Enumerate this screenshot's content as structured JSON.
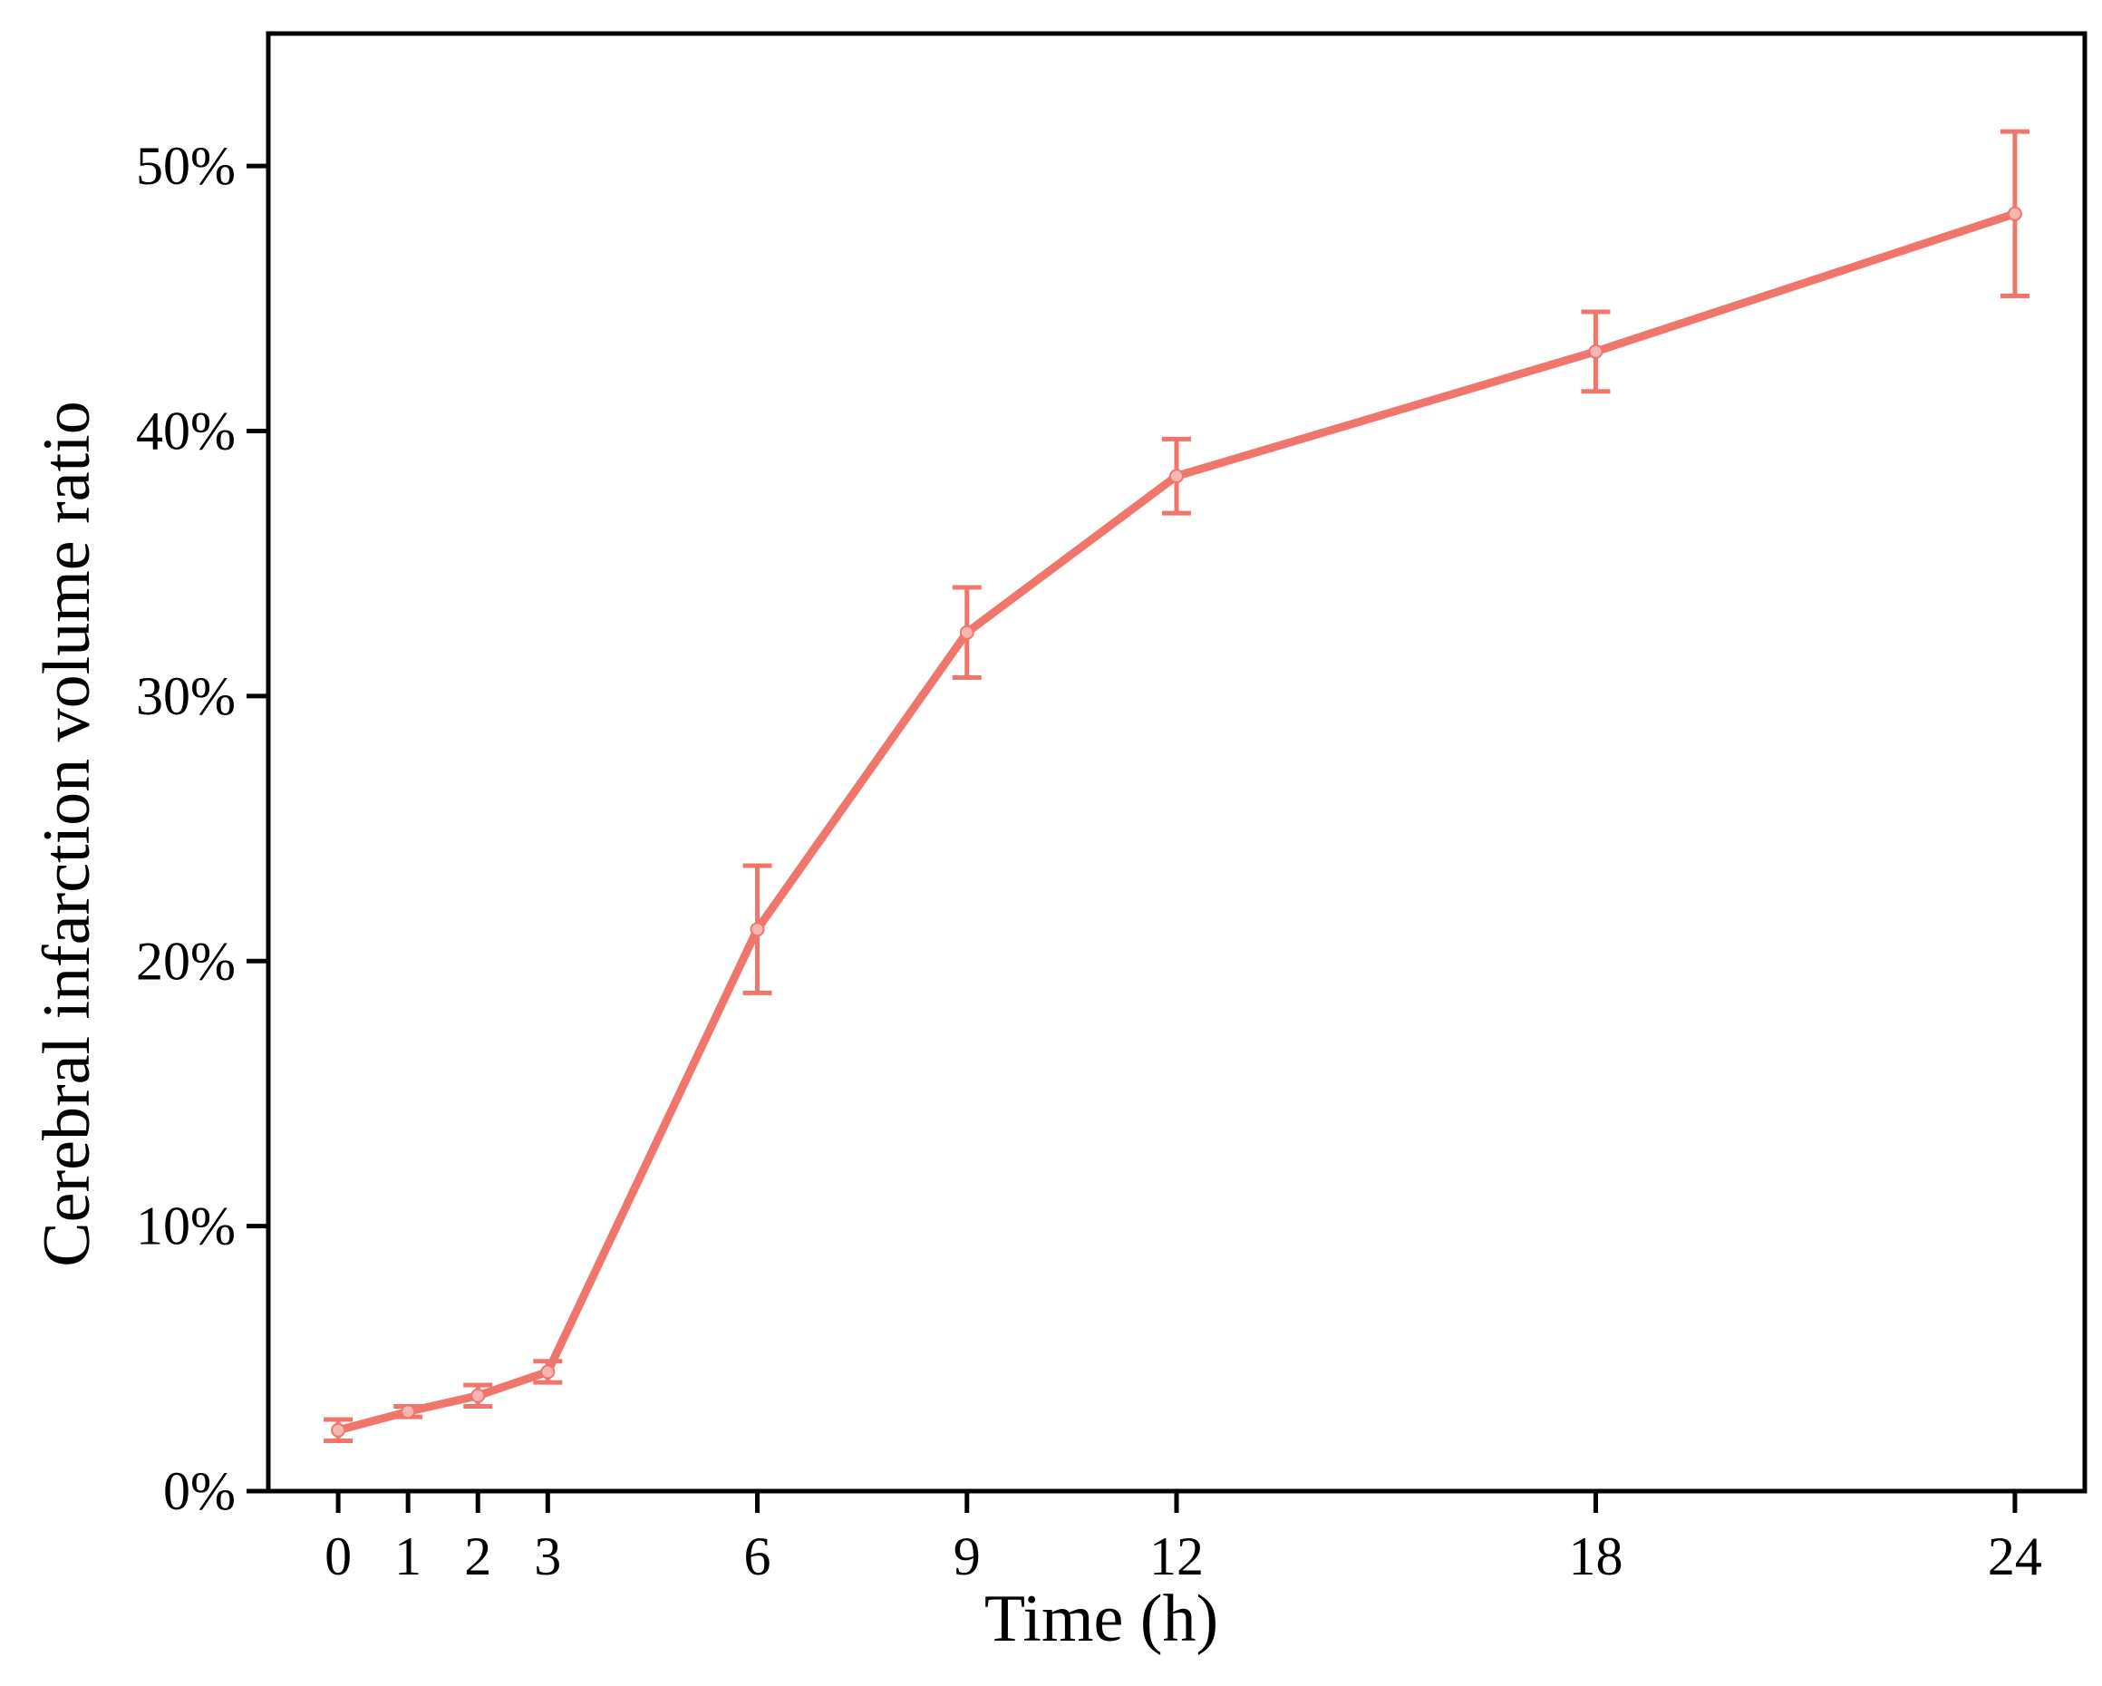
{
  "chart_data": {
    "type": "line",
    "title": "",
    "xlabel": "Time (h)",
    "ylabel": "Cerebral infarction volume ratio",
    "x": [
      0,
      1,
      2,
      3,
      6,
      9,
      12,
      18,
      24
    ],
    "x_ticks": [
      "0",
      "1",
      "2",
      "3",
      "6",
      "9",
      "12",
      "18",
      "24"
    ],
    "xlim": [
      -1,
      25
    ],
    "ylim": [
      0,
      0.55
    ],
    "y_ticks": [
      0,
      0.1,
      0.2,
      0.3,
      0.4,
      0.5
    ],
    "y_tick_labels": [
      "0%",
      "10%",
      "20%",
      "30%",
      "40%",
      "50%"
    ],
    "grid": false,
    "series": [
      {
        "values": [
          0.023,
          0.03,
          0.036,
          0.045,
          0.212,
          0.324,
          0.383,
          0.43,
          0.482
        ],
        "error": [
          0.004,
          0.002,
          0.004,
          0.004,
          0.024,
          0.017,
          0.014,
          0.015,
          0.031
        ],
        "color": "#f0766c",
        "marker_color": "#f7b6b1"
      }
    ]
  }
}
